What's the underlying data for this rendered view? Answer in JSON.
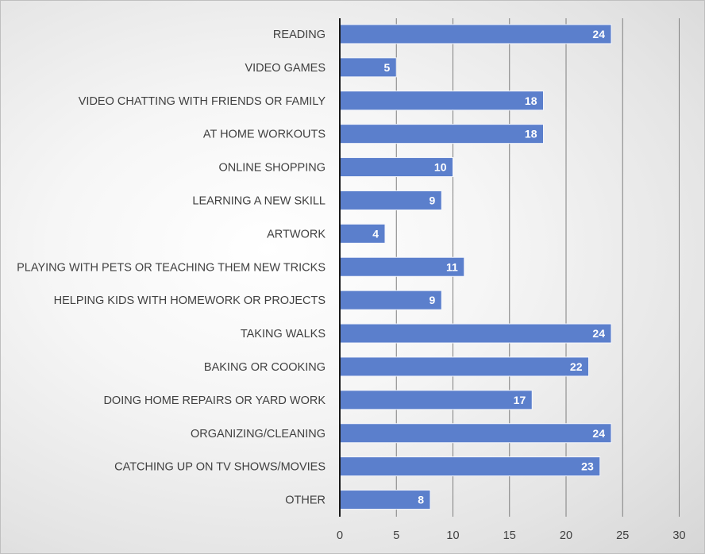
{
  "chart_data": {
    "type": "bar",
    "orientation": "horizontal",
    "categories": [
      "READING",
      "VIDEO GAMES",
      "VIDEO CHATTING WITH FRIENDS OR FAMILY",
      "AT HOME WORKOUTS",
      "ONLINE SHOPPING",
      "LEARNING A NEW SKILL",
      "ARTWORK",
      "PLAYING WITH PETS OR TEACHING THEM NEW TRICKS",
      "HELPING KIDS WITH HOMEWORK OR PROJECTS",
      "TAKING WALKS",
      "BAKING OR COOKING",
      "DOING HOME REPAIRS OR YARD WORK",
      "ORGANIZING/CLEANING",
      "CATCHING UP ON TV SHOWS/MOVIES",
      "OTHER"
    ],
    "values": [
      24,
      5,
      18,
      18,
      10,
      9,
      4,
      11,
      9,
      24,
      22,
      17,
      24,
      23,
      8
    ],
    "title": "",
    "xlabel": "",
    "ylabel": "",
    "xlim": [
      0,
      30
    ],
    "xticks": [
      0,
      5,
      10,
      15,
      20,
      25,
      30
    ],
    "grid": "vertical",
    "legend": "none",
    "data_labels": "inside-end",
    "colors": {
      "bar": "#5b7fcc",
      "bar_edge": "#f4f6fb",
      "grid": "#7f7f7f",
      "axis": "#1a1a1a",
      "label_text": "#404040",
      "data_label_text": "#ffffff"
    }
  }
}
